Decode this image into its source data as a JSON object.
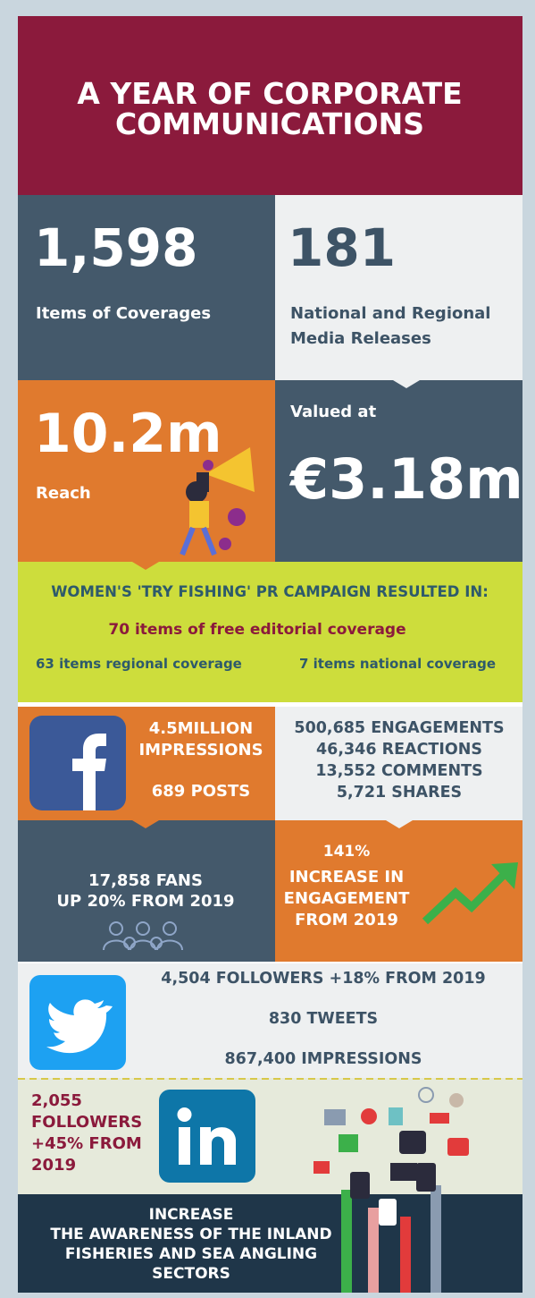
{
  "header": {
    "title": [
      "A YEAR OF CORPORATE",
      "COMMUNICATIONS"
    ]
  },
  "coverage": {
    "value": "1,598",
    "label": "Items of Coverages"
  },
  "releases": {
    "value": "181",
    "label": [
      "National and Regional",
      "Media Releases"
    ]
  },
  "reach": {
    "value": "10.2m",
    "label": "Reach"
  },
  "valuation": {
    "label": "Valued at",
    "value": "€3.18m"
  },
  "campaign": {
    "title": "WOMEN'S 'TRY FISHING' PR CAMPAIGN RESULTED IN:",
    "headline": "70 items of free editorial coverage",
    "regional": "63 items regional coverage",
    "national": "7 items national coverage"
  },
  "facebook": {
    "impressions": [
      "4.5MILLION",
      "IMPRESSIONS"
    ],
    "posts": "689 POSTS",
    "stats": [
      "500,685 ENGAGEMENTS",
      "46,346 REACTIONS",
      "13,552 COMMENTS",
      "5,721 SHARES"
    ],
    "fans": [
      "17,858 FANS",
      "UP 20% FROM 2019"
    ],
    "engagement": [
      "141%",
      "INCREASE IN",
      "ENGAGEMENT",
      "FROM 2019"
    ]
  },
  "twitter": {
    "stats": [
      "4,504 FOLLOWERS +18% FROM 2019",
      "830 TWEETS",
      "867,400 IMPRESSIONS"
    ]
  },
  "linkedin": {
    "stats": [
      "2,055",
      "FOLLOWERS",
      "+45% FROM",
      "2019"
    ]
  },
  "footer": {
    "goal": [
      "INCREASE",
      "THE AWARENESS OF THE INLAND",
      "FISHERIES AND SEA ANGLING",
      "SECTORS"
    ]
  }
}
